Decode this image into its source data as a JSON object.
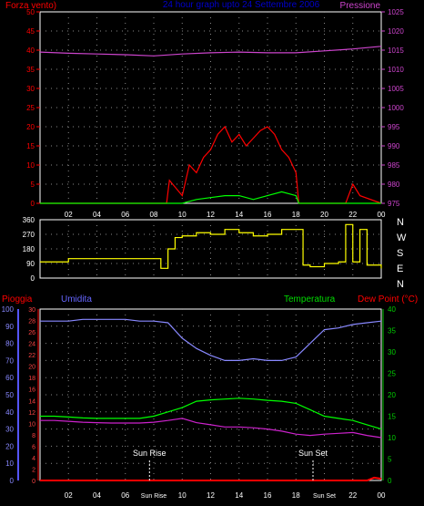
{
  "top_panel": {
    "title": "24 hour graph upto 24 Settembre 2006",
    "left_label": "Forza vento)",
    "right_label": "Pressione",
    "left_ticks": [
      "0",
      "5",
      "10",
      "15",
      "20",
      "25",
      "30",
      "35",
      "40",
      "45",
      "50"
    ],
    "right_ticks": [
      "975",
      "980",
      "985",
      "990",
      "995",
      "1000",
      "1005",
      "1010",
      "1015",
      "1020",
      "1025"
    ]
  },
  "mid_panel": {
    "left_ticks": [
      "0",
      "90",
      "180",
      "270",
      "360"
    ],
    "compass": [
      "N",
      "W",
      "S",
      "E",
      "N"
    ]
  },
  "bottom_panel": {
    "label_rain": "Pioggia",
    "label_humidity": "Umidita",
    "label_temp": "Temperatura",
    "label_dew": "Dew Point (°C)",
    "humidity_ticks": [
      "0",
      "10",
      "20",
      "30",
      "40",
      "50",
      "60",
      "70",
      "80",
      "90",
      "100"
    ],
    "rain_ticks": [
      "0",
      "2",
      "4",
      "6",
      "8",
      "10",
      "12",
      "14",
      "16",
      "18",
      "20",
      "22",
      "24",
      "26",
      "28",
      "30"
    ],
    "temp_ticks": [
      "0",
      "5",
      "10",
      "15",
      "20",
      "25",
      "30",
      "35",
      "40"
    ],
    "sun_rise_label": "Sun Rise",
    "sun_set_label": "Sun Set"
  },
  "time_ticks": [
    "02",
    "04",
    "06",
    "08",
    "10",
    "12",
    "14",
    "16",
    "18",
    "20",
    "22",
    "00"
  ],
  "bottom_time_ticks": [
    "02",
    "04",
    "06",
    "Sun Rise",
    "10",
    "12",
    "14",
    "16",
    "18",
    "Sun Set",
    "22",
    "00"
  ],
  "colors": {
    "wind": "#ff0000",
    "gust": "#ff0000",
    "wind_avg": "#00ff00",
    "pressure": "#cc44cc",
    "direction": "#ffff00",
    "humidity": "#8888ff",
    "temperature": "#00ff00",
    "dew_point": "#cc22cc",
    "rain": "#ff0000",
    "axis_red": "#ff0000",
    "axis_blue": "#5555ff",
    "axis_green": "#00cc00"
  },
  "chart_data": [
    {
      "type": "line",
      "name": "wind_and_pressure",
      "x_hours": [
        0,
        24
      ],
      "pressure": {
        "x": [
          0,
          2,
          4,
          6,
          8,
          10,
          12,
          14,
          16,
          18,
          20,
          22,
          24
        ],
        "y": [
          1014.5,
          1014.2,
          1014,
          1013.8,
          1013.5,
          1014,
          1014.3,
          1014.5,
          1014.3,
          1014.3,
          1014.8,
          1015.3,
          1016
        ]
      },
      "wind_gust": {
        "x": [
          0,
          8.9,
          9.1,
          10,
          10.5,
          11,
          11.5,
          12,
          12.5,
          13,
          13.5,
          14,
          14.5,
          15,
          15.5,
          16,
          16.5,
          17,
          17.5,
          18,
          18.2,
          21.5,
          22,
          22.5,
          24
        ],
        "y": [
          0,
          0,
          6,
          2,
          10,
          8,
          12,
          14,
          18,
          20,
          16,
          18,
          15,
          17,
          19,
          20,
          18,
          14,
          12,
          8,
          0,
          0,
          5,
          2,
          0
        ]
      },
      "wind_avg": {
        "x": [
          0,
          10,
          11,
          12,
          13,
          14,
          15,
          16,
          17,
          18,
          18.2,
          24
        ],
        "y": [
          0,
          0,
          1,
          1.5,
          2,
          2,
          1,
          2,
          3,
          2,
          0,
          0
        ]
      },
      "ylim_left": [
        0,
        50
      ],
      "ylim_right": [
        975,
        1025
      ]
    },
    {
      "type": "line",
      "name": "wind_direction",
      "x": [
        0,
        1,
        2,
        3,
        4,
        5,
        6,
        7,
        8,
        8.5,
        9,
        9.5,
        10,
        11,
        12,
        13,
        14,
        15,
        16,
        17,
        18,
        18.5,
        19,
        20,
        21,
        21.5,
        22,
        22.5,
        23,
        24
      ],
      "y": [
        100,
        100,
        120,
        120,
        120,
        120,
        120,
        120,
        120,
        60,
        180,
        250,
        260,
        280,
        270,
        300,
        280,
        260,
        270,
        300,
        300,
        80,
        70,
        90,
        100,
        330,
        100,
        300,
        80,
        60
      ],
      "ylim": [
        0,
        360
      ]
    },
    {
      "type": "line",
      "name": "humidity_temperature",
      "humidity": {
        "x": [
          0,
          1,
          2,
          3,
          4,
          5,
          6,
          7,
          8,
          9,
          10,
          11,
          12,
          13,
          14,
          15,
          16,
          17,
          18,
          19,
          20,
          21,
          22,
          23,
          24
        ],
        "y": [
          93,
          93,
          93,
          94,
          94,
          94,
          94,
          93,
          93,
          92,
          83,
          77,
          73,
          70,
          70,
          71,
          70,
          70,
          72,
          80,
          88,
          89,
          91,
          92,
          93
        ]
      },
      "temperature": {
        "x": [
          0,
          1,
          2,
          3,
          4,
          5,
          6,
          7,
          8,
          9,
          10,
          11,
          12,
          13,
          14,
          15,
          16,
          17,
          18,
          19,
          20,
          21,
          22,
          23,
          24
        ],
        "y": [
          15,
          15,
          14.8,
          14.6,
          14.5,
          14.5,
          14.5,
          14.5,
          15,
          16,
          17,
          18.5,
          18.8,
          19,
          19.2,
          19,
          18.7,
          18.5,
          18,
          16.5,
          15,
          14.5,
          14,
          13,
          12
        ]
      },
      "dew_point": {
        "x": [
          0,
          1,
          2,
          3,
          4,
          5,
          6,
          7,
          8,
          9,
          10,
          11,
          12,
          13,
          14,
          15,
          16,
          17,
          18,
          19,
          20,
          21,
          22,
          23,
          24
        ],
        "y": [
          14,
          14,
          13.8,
          13.6,
          13.5,
          13.4,
          13.4,
          13.4,
          13.6,
          14,
          14.5,
          13.5,
          13,
          12.5,
          12.5,
          12.3,
          12,
          11.5,
          10.8,
          10.5,
          10.8,
          11,
          11.2,
          10.5,
          10
        ]
      },
      "rain": {
        "x": [
          0,
          23,
          23.5,
          24
        ],
        "y": [
          0,
          0,
          0.5,
          0.3
        ]
      },
      "ylim_humidity": [
        0,
        100
      ],
      "ylim_rain": [
        0,
        30
      ],
      "ylim_temp": [
        0,
        40
      ],
      "sun_rise_hour": 7.7,
      "sun_set_hour": 19.2
    }
  ]
}
